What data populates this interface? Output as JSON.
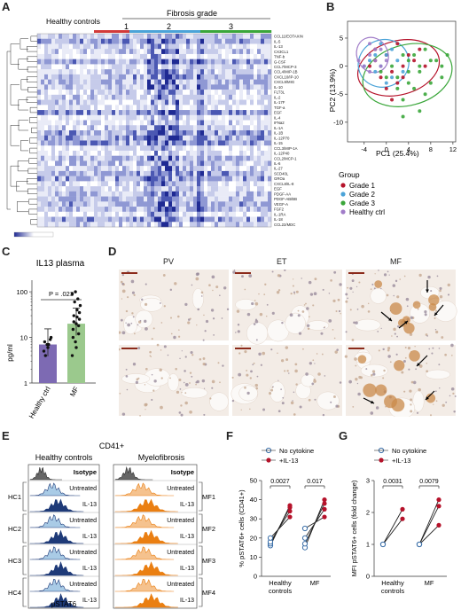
{
  "panels": {
    "A": {
      "label": "A",
      "healthy_label": "Healthy controls",
      "fibrosis_label": "Fibrosis grade",
      "grades": [
        "1",
        "2",
        "3"
      ],
      "cytokines": [
        "CCL11/EOTAXIN",
        "IL-5",
        "IL-13",
        "CX3CL1",
        "TNF-b",
        "G-CSF",
        "CCL7/MCP-3",
        "CCL4/MIP-1B",
        "CXCL10/IP-10",
        "CXCL9/MIG",
        "IL-10",
        "FLT3L",
        "IL-2",
        "IL-17F",
        "TGF-a",
        "EGF",
        "IL-4",
        "IFNa2",
        "IL-1A",
        "IL-1B",
        "IL-12P70",
        "IL-15",
        "CCL3/MIP-1A",
        "IL-12P40",
        "CCL2/MCP-1",
        "IL-6",
        "IL-27",
        "SCD40L",
        "GROa",
        "CXCL8/IL-8",
        "EGF",
        "PDGF-AA",
        "PDGF-AB/BB",
        "VEGF-A",
        "FGF2",
        "IL-1RA",
        "IL-18",
        "CCL22/MDC"
      ],
      "colorbar_min": "",
      "colorbar_max": ""
    },
    "B": {
      "label": "B",
      "legend_title": "Group",
      "legend": [
        "Grade 1",
        "Grade 2",
        "Grade 3",
        "Healthy ctrl"
      ],
      "colors": [
        "#b5122a",
        "#4ba3d8",
        "#3aa63a",
        "#a07cc8"
      ],
      "chart_data": {
        "type": "scatter",
        "xlabel": "PC1 (25.4%)",
        "ylabel": "PC2 (13.9%)",
        "xlim": [
          -7,
          12.5
        ],
        "ylim": [
          -13.5,
          8
        ],
        "xticks": [
          -4,
          0,
          4,
          8,
          12
        ],
        "yticks": [
          5,
          0,
          -5,
          -10
        ],
        "series": [
          {
            "name": "Grade 1",
            "points": [
              [
                -2,
                1
              ],
              [
                0,
                2
              ],
              [
                1,
                -1
              ],
              [
                3,
                0
              ],
              [
                4,
                2
              ],
              [
                -1,
                -2
              ],
              [
                2,
                -3
              ],
              [
                5,
                1
              ],
              [
                6,
                3
              ],
              [
                0,
                -4
              ],
              [
                -3,
                0
              ],
              [
                2,
                4
              ],
              [
                7,
                0
              ],
              [
                1,
                -6
              ],
              [
                3,
                -2
              ],
              [
                -2,
                3
              ]
            ],
            "ellipse": {
              "cx": 2.2,
              "cy": -0.3,
              "rx": 7.5,
              "ry": 4.8,
              "rot": -15
            }
          },
          {
            "name": "Grade 2",
            "points": [
              [
                -3,
                1
              ],
              [
                -1,
                0
              ],
              [
                0,
                2
              ],
              [
                1,
                -2
              ],
              [
                -2,
                -1
              ],
              [
                2,
                1
              ],
              [
                -4,
                0
              ],
              [
                0,
                -3
              ],
              [
                1,
                3
              ],
              [
                -1,
                4
              ],
              [
                3,
                -1
              ],
              [
                -2,
                2
              ]
            ],
            "ellipse": {
              "cx": -0.5,
              "cy": 0.5,
              "rx": 4.6,
              "ry": 4.2,
              "rot": -20
            }
          },
          {
            "name": "Grade 3",
            "points": [
              [
                2,
                -2
              ],
              [
                4,
                1
              ],
              [
                6,
                -1
              ],
              [
                8,
                -3
              ],
              [
                10,
                0
              ],
              [
                11,
                2
              ],
              [
                3,
                -6
              ],
              [
                5,
                -4
              ],
              [
                1,
                0
              ],
              [
                7,
                -5
              ],
              [
                9,
                1
              ],
              [
                4,
                -1
              ],
              [
                0,
                -2
              ],
              [
                3,
                2
              ],
              [
                6,
                -8
              ],
              [
                2,
                -4
              ],
              [
                -1,
                -1
              ],
              [
                5,
                2
              ],
              [
                8,
                1
              ],
              [
                4,
                -3
              ],
              [
                10,
                -2
              ],
              [
                7,
                3
              ],
              [
                6,
                0
              ],
              [
                3,
                -9
              ]
            ],
            "ellipse": {
              "cx": 3.8,
              "cy": -1.6,
              "rx": 8.2,
              "ry": 5.4,
              "rot": -15
            }
          },
          {
            "name": "Healthy ctrl",
            "points": [
              [
                -3,
                2
              ],
              [
                -2,
                1
              ],
              [
                -4,
                0
              ],
              [
                -1,
                3
              ],
              [
                -3,
                -1
              ],
              [
                -2,
                3
              ],
              [
                -1,
                0
              ],
              [
                0,
                1
              ],
              [
                -5,
                1
              ],
              [
                -3,
                4
              ]
            ],
            "ellipse": {
              "cx": -2.5,
              "cy": 2.0,
              "rx": 2.8,
              "ry": 3.2,
              "rot": -25
            }
          }
        ]
      }
    },
    "C": {
      "label": "C",
      "title": "IL13 plasma",
      "pvalue": "P = .023",
      "chart_data": {
        "type": "bar",
        "categories": [
          "Healthy ctrl",
          "MF"
        ],
        "values": [
          7,
          20
        ],
        "ylabel": "pg/ml",
        "yscale": "log",
        "ylim": [
          1,
          180
        ],
        "yticks": [
          "1",
          "10",
          "100"
        ],
        "colors": [
          "#7d6ab3",
          "#9bc98d"
        ],
        "points": [
          [
            5,
            7,
            9,
            8,
            6,
            10,
            4,
            7
          ],
          [
            4,
            8,
            12,
            15,
            20,
            25,
            30,
            40,
            50,
            60,
            70,
            90,
            100,
            18,
            10,
            6,
            35,
            22,
            28
          ]
        ]
      }
    },
    "D": {
      "label": "D",
      "columns": [
        "PV",
        "ET",
        "MF"
      ]
    },
    "E": {
      "label": "E",
      "title": "CD41+",
      "left_title": "Healthy controls",
      "right_title": "Myelofibrosis",
      "isotype": "Isotype",
      "untreated": "Untreated",
      "il13": "IL-13",
      "hc": [
        "HC1",
        "HC2",
        "HC3",
        "HC4"
      ],
      "mf": [
        "MF1",
        "MF2",
        "MF3",
        "MF4"
      ],
      "xlabel": "pSTAT6"
    },
    "F": {
      "label": "F",
      "legend": [
        "No cytokine",
        "+IL-13"
      ],
      "chart_data": {
        "type": "scatter",
        "ylabel": "% pSTAT6+ cells (CD41+)",
        "ylim": [
          0,
          50
        ],
        "yticks": [
          0,
          10,
          20,
          30,
          40,
          50
        ],
        "categories": [
          "Healthy controls",
          "MF"
        ],
        "pvalues": [
          "0.0027",
          "0.017"
        ],
        "pairs": [
          [
            [
              16,
              37
            ],
            [
              17,
              36
            ],
            [
              18,
              34
            ],
            [
              20,
              31
            ]
          ],
          [
            [
              15,
              40
            ],
            [
              17,
              38
            ],
            [
              20,
              35
            ],
            [
              25,
              31
            ]
          ]
        ]
      }
    },
    "G": {
      "label": "G",
      "legend": [
        "No cytokine",
        "+IL-13"
      ],
      "chart_data": {
        "type": "scatter",
        "ylabel": "MFI pSTAT6+ cells (fold change)",
        "ylim": [
          0,
          3
        ],
        "yticks": [
          0,
          1,
          2,
          3
        ],
        "categories": [
          "Healthy controls",
          "MF"
        ],
        "pvalues": [
          "0.0031",
          "0.0079"
        ],
        "pairs": [
          [
            [
              1,
              2.1
            ],
            [
              1,
              1.8
            ]
          ],
          [
            [
              1,
              2.4
            ],
            [
              1,
              2.2
            ],
            [
              1,
              1.6
            ]
          ]
        ]
      }
    }
  }
}
